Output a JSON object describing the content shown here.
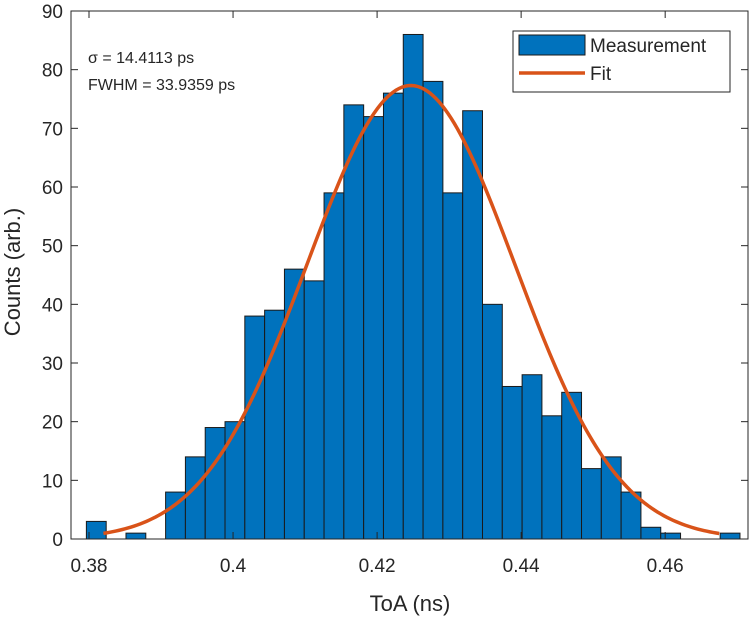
{
  "chart_data": {
    "type": "bar",
    "title": "",
    "xlabel": "ToA (ns)",
    "ylabel": "Counts (arb.)",
    "xlim": [
      0.3775,
      0.4715
    ],
    "ylim": [
      0,
      90
    ],
    "xticks": [
      0.38,
      0.4,
      0.42,
      0.44,
      0.46
    ],
    "xtick_labels": [
      "0.38",
      "0.4",
      "0.42",
      "0.44",
      "0.46"
    ],
    "yticks": [
      0,
      10,
      20,
      30,
      40,
      50,
      60,
      70,
      80,
      90
    ],
    "ytick_labels": [
      "0",
      "10",
      "20",
      "30",
      "40",
      "50",
      "60",
      "70",
      "80",
      "90"
    ],
    "grid": false,
    "legend_position": "top-right",
    "bin_width": 0.00275,
    "bin_centers": [
      0.38101,
      0.38376,
      0.38651,
      0.38926,
      0.39201,
      0.39476,
      0.39751,
      0.40026,
      0.40301,
      0.40576,
      0.40851,
      0.41126,
      0.41401,
      0.41676,
      0.41951,
      0.42226,
      0.42501,
      0.42776,
      0.43051,
      0.43326,
      0.43601,
      0.43876,
      0.44151,
      0.44426,
      0.44701,
      0.44976,
      0.45251,
      0.45526,
      0.45801,
      0.46076,
      0.46351,
      0.46626,
      0.46901
    ],
    "series": [
      {
        "name": "Measurement",
        "type": "bar",
        "color": "#0072bd",
        "values": [
          3,
          0,
          1,
          0,
          8,
          14,
          19,
          20,
          38,
          39,
          46,
          44,
          59,
          74,
          72,
          76,
          86,
          78,
          59,
          73,
          40,
          26,
          28,
          21,
          25,
          12,
          14,
          8,
          2,
          1,
          0,
          0,
          1
        ]
      },
      {
        "name": "Fit",
        "type": "line",
        "color": "#d95319",
        "model": "gaussian",
        "amplitude": 77.3,
        "mean": 0.4247,
        "x_range": [
          0.382,
          0.4675
        ]
      }
    ],
    "annotations": {
      "sigma": "σ = 14.4113 ps",
      "fwhm": "FWHM = 33.9359 ps"
    }
  }
}
